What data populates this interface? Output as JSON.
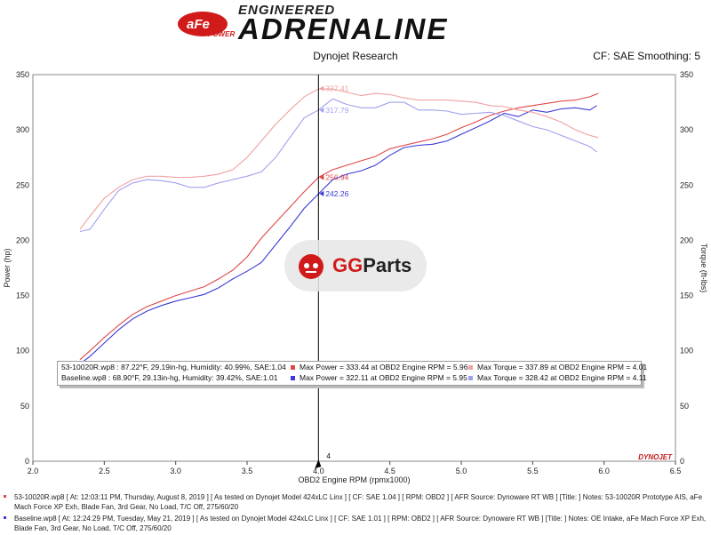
{
  "header": {
    "brand_logo_text": "aFe POWER",
    "engineered": "ENGINEERED",
    "adrenaline": "ADRENALINE",
    "subtitle": "Dynojet Research",
    "cf_info": "CF: SAE Smoothing: 5"
  },
  "watermark": {
    "text_g": "GG",
    "text_parts": "Parts"
  },
  "dynojet_logo": "DYNOJET",
  "cursor_label": "4",
  "colors": {
    "power_mod": "#e04848",
    "power_base": "#3a3ad8",
    "torque_mod": "#f0a0a0",
    "torque_base": "#a0a0ee",
    "cursor": "#000000"
  },
  "legend": {
    "row1": {
      "file": "53-10020R.wp8 : 87.22°F, 29.19in-hg, Humidity: 40.99%, SAE:1.04",
      "power": "Max Power = 333.44 at OBD2 Engine RPM = 5.96",
      "torque": "Max Torque = 337.89 at OBD2 Engine RPM = 4.01"
    },
    "row2": {
      "file": "Baseline.wp8    : 68.90°F, 29.13in-hg, Humidity: 39.42%, SAE:1.01",
      "power": "Max Power = 322.11 at OBD2 Engine RPM = 5.95",
      "torque": "Max Torque = 328.42 at OBD2 Engine RPM = 4.11"
    }
  },
  "footnotes": [
    "53-10020R.wp8 [ At: 12:03:11 PM, Thursday, August 8, 2019 ] [ As tested on Dynojet Model 424xLC Linx ] [ CF: SAE 1.04 ] [ RPM: OBD2 ] [ AFR Source: Dynoware RT WB ] [Title: ]  Notes: 53-10020R Prototype AIS, aFe Mach Force XP Exh, Blade Fan, 3rd Gear, No Load, T/C Off, 275/60/20",
    "Baseline.wp8 [ At: 12:24:29 PM, Tuesday, May 21, 2019 ] [ As tested on Dynojet Model 424xLC Linx ] [ CF: SAE 1.01 ] [ RPM: OBD2 ] [ AFR Source: Dynoware RT WB ] [Title: ]  Notes: OE Intake, aFe Mach Force XP Exh, Blade Fan, 3rd Gear, No Load, T/C Off, 275/60/20"
  ],
  "chart_data": {
    "type": "line",
    "xlabel": "OBD2 Engine RPM (rpmx1000)",
    "ylabel": "Power (hp)",
    "y2label": "Torque (ft-lbs)",
    "xlim": [
      2.0,
      6.5
    ],
    "ylim": [
      0,
      350
    ],
    "y2lim": [
      0,
      350
    ],
    "xticks": [
      "2.0",
      "2.5",
      "3.0",
      "3.5",
      "4.0",
      "4.5",
      "5.0",
      "5.5",
      "6.0",
      "6.5"
    ],
    "yticks": [
      "0",
      "50",
      "100",
      "150",
      "200",
      "250",
      "300",
      "350"
    ],
    "grid": true,
    "cursor_x": 4.0,
    "cursor_labels": [
      {
        "text": "337.41",
        "y": 337.41,
        "series": "torque_mod"
      },
      {
        "text": "317.79",
        "y": 317.79,
        "series": "torque_base"
      },
      {
        "text": "256.94",
        "y": 256.94,
        "series": "power_mod"
      },
      {
        "text": "242.26",
        "y": 242.26,
        "series": "power_base"
      }
    ],
    "series": [
      {
        "key": "power_mod",
        "x": [
          2.33,
          2.4,
          2.5,
          2.6,
          2.7,
          2.8,
          2.9,
          3.0,
          3.1,
          3.2,
          3.3,
          3.4,
          3.5,
          3.6,
          3.7,
          3.8,
          3.9,
          4.0,
          4.1,
          4.2,
          4.3,
          4.4,
          4.5,
          4.6,
          4.7,
          4.8,
          4.9,
          5.0,
          5.1,
          5.2,
          5.3,
          5.4,
          5.5,
          5.6,
          5.7,
          5.8,
          5.9,
          5.96
        ],
        "y": [
          92,
          100,
          112,
          123,
          133,
          140,
          145,
          150,
          154,
          158,
          165,
          173,
          185,
          202,
          216,
          230,
          244,
          257,
          264,
          268,
          272,
          276,
          283,
          286,
          289,
          292,
          296,
          302,
          307,
          313,
          317,
          320,
          322,
          324,
          326,
          327,
          330,
          333
        ]
      },
      {
        "key": "power_base",
        "x": [
          2.33,
          2.4,
          2.5,
          2.6,
          2.7,
          2.8,
          2.9,
          3.0,
          3.1,
          3.2,
          3.3,
          3.4,
          3.5,
          3.6,
          3.7,
          3.8,
          3.9,
          4.0,
          4.1,
          4.2,
          4.3,
          4.4,
          4.5,
          4.6,
          4.7,
          4.8,
          4.9,
          5.0,
          5.1,
          5.2,
          5.3,
          5.4,
          5.5,
          5.6,
          5.7,
          5.8,
          5.9,
          5.95
        ],
        "y": [
          88,
          95,
          107,
          119,
          129,
          136,
          141,
          145,
          148,
          151,
          157,
          165,
          172,
          180,
          196,
          212,
          229,
          242,
          255,
          260,
          263,
          268,
          277,
          284,
          286,
          287,
          290,
          296,
          302,
          308,
          315,
          312,
          318,
          316,
          319,
          320,
          318,
          322
        ]
      },
      {
        "key": "torque_mod",
        "x": [
          2.33,
          2.4,
          2.5,
          2.6,
          2.7,
          2.8,
          2.9,
          3.0,
          3.1,
          3.2,
          3.3,
          3.4,
          3.5,
          3.6,
          3.7,
          3.8,
          3.9,
          4.0,
          4.1,
          4.2,
          4.3,
          4.4,
          4.5,
          4.6,
          4.7,
          4.8,
          4.9,
          5.0,
          5.1,
          5.2,
          5.3,
          5.4,
          5.5,
          5.6,
          5.7,
          5.8,
          5.9,
          5.96
        ],
        "y": [
          210,
          222,
          238,
          248,
          255,
          258,
          258,
          257,
          257,
          258,
          260,
          264,
          275,
          290,
          305,
          318,
          330,
          337,
          337,
          334,
          331,
          333,
          332,
          329,
          327,
          327,
          327,
          326,
          325,
          322,
          321,
          318,
          316,
          312,
          307,
          300,
          295,
          293
        ]
      },
      {
        "key": "torque_base",
        "x": [
          2.33,
          2.4,
          2.5,
          2.6,
          2.7,
          2.8,
          2.9,
          3.0,
          3.1,
          3.2,
          3.3,
          3.4,
          3.5,
          3.6,
          3.7,
          3.8,
          3.9,
          4.0,
          4.1,
          4.2,
          4.3,
          4.4,
          4.5,
          4.6,
          4.7,
          4.8,
          4.9,
          5.0,
          5.1,
          5.2,
          5.3,
          5.4,
          5.5,
          5.6,
          5.7,
          5.8,
          5.9,
          5.95
        ],
        "y": [
          208,
          210,
          228,
          245,
          252,
          255,
          254,
          252,
          248,
          248,
          252,
          255,
          258,
          262,
          275,
          293,
          311,
          318,
          328,
          323,
          320,
          320,
          325,
          325,
          318,
          318,
          317,
          314,
          315,
          316,
          313,
          308,
          303,
          300,
          295,
          290,
          285,
          280
        ]
      }
    ]
  }
}
